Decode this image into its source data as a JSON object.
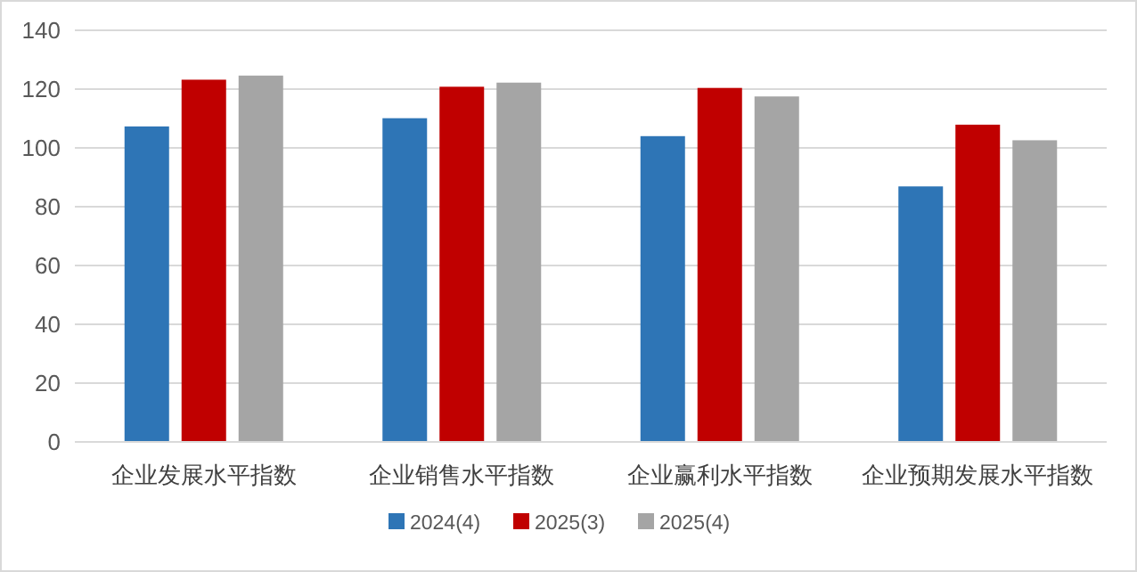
{
  "chart_data": {
    "type": "bar",
    "categories": [
      "企业发展水平指数",
      "企业销售水平指数",
      "企业赢利水平指数",
      "企业预期发展水平指数"
    ],
    "series": [
      {
        "name": "2024(4)",
        "color": "#2e75b6",
        "values": [
          107.3,
          110.1,
          104.0,
          86.9
        ]
      },
      {
        "name": "2025(3)",
        "color": "#c00000",
        "values": [
          123.2,
          120.8,
          120.4,
          107.9
        ]
      },
      {
        "name": "2025(4)",
        "color": "#a5a5a5",
        "values": [
          124.6,
          122.2,
          117.5,
          102.6
        ]
      }
    ],
    "ylim": [
      0,
      140
    ],
    "yticks": [
      0,
      20,
      40,
      60,
      80,
      100,
      120,
      140
    ],
    "grid": "y",
    "legend": "bottom"
  }
}
